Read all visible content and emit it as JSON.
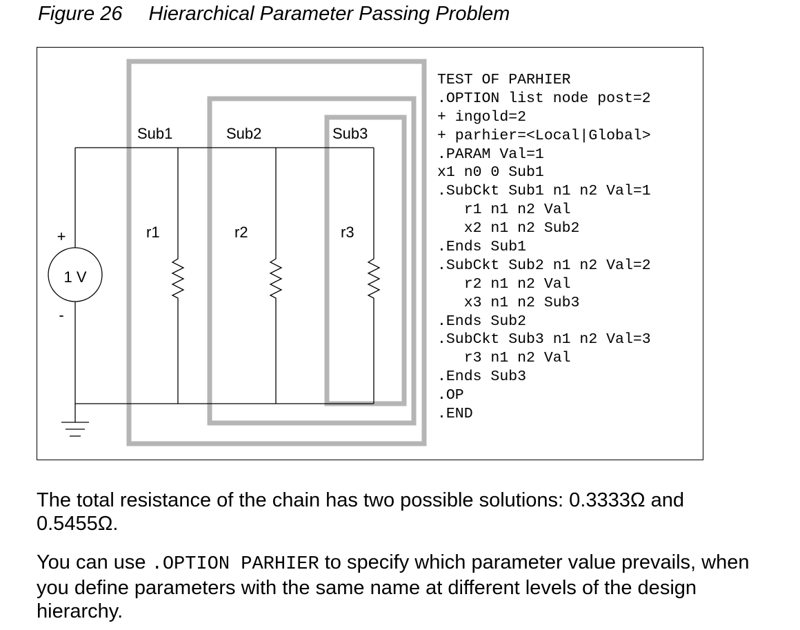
{
  "figure": {
    "number": "Figure 26",
    "title": "Hierarchical Parameter Passing Problem"
  },
  "schematic": {
    "source_label": "1 V",
    "plus_label": "+",
    "minus_label": "-",
    "subcircuits": [
      {
        "label": "Sub1",
        "resistor": "r1"
      },
      {
        "label": "Sub2",
        "resistor": "r2"
      },
      {
        "label": "Sub3",
        "resistor": "r3"
      }
    ]
  },
  "netlist": [
    "TEST OF PARHIER",
    ".OPTION list node post=2",
    "+ ingold=2",
    "+ parhier=<Local|Global>",
    ".PARAM Val=1",
    "x1 n0 0 Sub1",
    ".SubCkt Sub1 n1 n2 Val=1",
    "   r1 n1 n2 Val",
    "   x2 n1 n2 Sub2",
    ".Ends Sub1",
    ".SubCkt Sub2 n1 n2 Val=2",
    "   r2 n1 n2 Val",
    "   x3 n1 n2 Sub3",
    ".Ends Sub2",
    ".SubCkt Sub3 n1 n2 Val=3",
    "   r3 n1 n2 Val",
    ".Ends Sub3",
    ".OP",
    ".END"
  ],
  "paragraphs": {
    "p1": "The total resistance of the chain has two possible solutions: 0.3333Ω and 0.5455Ω.",
    "p2_before": "You can use ",
    "p2_code": ".OPTION PARHIER",
    "p2_after": " to specify which parameter value prevails, when you define parameters with the same name at different levels of the design hierarchy."
  }
}
